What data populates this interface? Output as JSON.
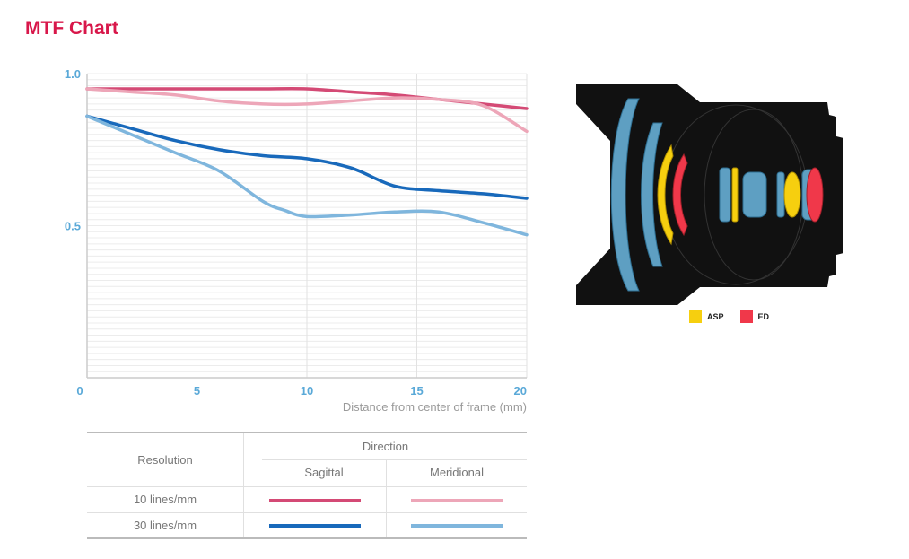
{
  "header": {
    "title": "MTF Chart"
  },
  "chart_data": {
    "type": "line",
    "title": "MTF Chart",
    "xlabel": "Distance from center of frame (mm)",
    "ylabel": "",
    "xlim": [
      0,
      20
    ],
    "ylim": [
      0,
      1.0
    ],
    "x_ticks": [
      0,
      5,
      10,
      15,
      20
    ],
    "y_ticks": [
      0.5,
      1.0
    ],
    "x_tick_labels": [
      "0",
      "5",
      "10",
      "15",
      "20"
    ],
    "y_tick_labels": [
      "0.5",
      "1.0"
    ],
    "grid": true,
    "series": [
      {
        "name": "10 lines/mm Sagittal",
        "color": "#d44a75",
        "x": [
          0,
          2,
          4,
          6,
          8,
          10,
          12,
          14,
          16,
          18,
          20
        ],
        "y": [
          0.95,
          0.95,
          0.95,
          0.95,
          0.95,
          0.95,
          0.94,
          0.93,
          0.915,
          0.9,
          0.885
        ]
      },
      {
        "name": "10 lines/mm Meridional",
        "color": "#eda6b8",
        "x": [
          0,
          2,
          4,
          6,
          8,
          10,
          12,
          14,
          16,
          18,
          20
        ],
        "y": [
          0.95,
          0.94,
          0.93,
          0.91,
          0.9,
          0.9,
          0.91,
          0.92,
          0.915,
          0.895,
          0.81
        ]
      },
      {
        "name": "30 lines/mm Sagittal",
        "color": "#1869bb",
        "x": [
          0,
          2,
          4,
          6,
          8,
          10,
          12,
          14,
          16,
          18,
          20
        ],
        "y": [
          0.86,
          0.82,
          0.78,
          0.75,
          0.73,
          0.72,
          0.69,
          0.63,
          0.615,
          0.605,
          0.59
        ]
      },
      {
        "name": "30 lines/mm Meridional",
        "color": "#7fb6dd",
        "x": [
          0,
          2,
          4,
          6,
          8,
          9,
          10,
          12,
          14,
          16,
          18,
          20
        ],
        "y": [
          0.86,
          0.8,
          0.74,
          0.68,
          0.58,
          0.55,
          0.53,
          0.535,
          0.545,
          0.545,
          0.51,
          0.47
        ]
      }
    ]
  },
  "legend": {
    "resolution_header": "Resolution",
    "direction_header": "Direction",
    "sagittal": "Sagittal",
    "meridional": "Meridional",
    "rows": [
      {
        "label": "10 lines/mm",
        "sagittal_color": "#d44a75",
        "meridional_color": "#eda6b8"
      },
      {
        "label": "30 lines/mm",
        "sagittal_color": "#1869bb",
        "meridional_color": "#7fb6dd"
      }
    ]
  },
  "lens": {
    "legend": [
      {
        "label": "ASP",
        "color": "#f6cf0f"
      },
      {
        "label": "ED",
        "color": "#f0384a"
      }
    ]
  }
}
